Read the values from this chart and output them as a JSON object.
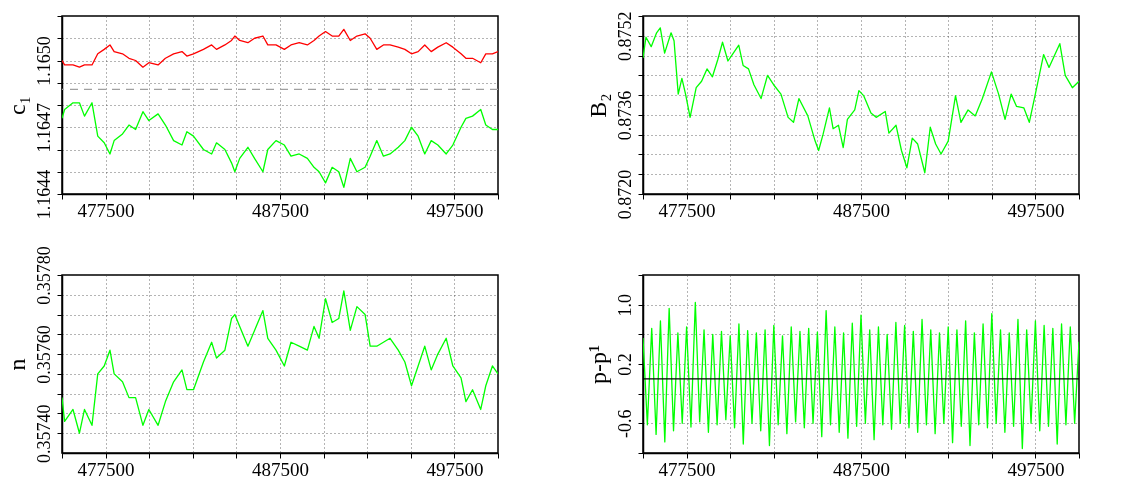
{
  "chart_data": [
    {
      "type": "line",
      "ylabel": "c₁",
      "grid": true,
      "xlim": [
        475000,
        500000
      ],
      "ylim": [
        1.1644,
        1.1652
      ],
      "xticks": [
        {
          "value": 475000,
          "label": null
        },
        477500,
        {
          "value": 480000,
          "label": null
        },
        {
          "value": 482500,
          "label": null
        },
        {
          "value": 485000,
          "label": null
        },
        487500,
        {
          "value": 490000,
          "label": null
        },
        {
          "value": 492500,
          "label": null
        },
        {
          "value": 495000,
          "label": null
        },
        497500,
        {
          "value": 500000,
          "label": null
        }
      ],
      "yticks": [
        {
          "value": 1.1644,
          "label": "1.1644"
        },
        {
          "value": 1.1645,
          "label": null
        },
        {
          "value": 1.1646,
          "label": null
        },
        {
          "value": 1.1647,
          "label": "1.1647"
        },
        {
          "value": 1.1648,
          "label": null
        },
        {
          "value": 1.1649,
          "label": null
        },
        {
          "value": 1.165,
          "label": "1.1650"
        },
        {
          "value": 1.1651,
          "label": null
        },
        {
          "value": 1.1652,
          "label": null
        }
      ],
      "x": [
        475000,
        475150,
        475630,
        476000,
        476290,
        476720,
        477050,
        477420,
        477750,
        477990,
        478470,
        478840,
        479220,
        479640,
        479980,
        480510,
        480930,
        481400,
        481880,
        482160,
        482540,
        483110,
        483580,
        483860,
        484340,
        484720,
        484910,
        485190,
        485660,
        486040,
        486520,
        486800,
        487270,
        487750,
        488130,
        488600,
        489070,
        489450,
        489740,
        490110,
        490490,
        490870,
        491160,
        491530,
        491910,
        492380,
        492670,
        493050,
        493430,
        493810,
        494280,
        494660,
        495040,
        495420,
        495800,
        496170,
        496550,
        497030,
        497410,
        497880,
        498160,
        498540,
        499010,
        499300,
        499680,
        500000
      ],
      "series": [
        {
          "color": "#ff0000",
          "values": [
            1.165,
            1.16498,
            1.16498,
            1.16497,
            1.16498,
            1.16498,
            1.16503,
            1.16505,
            1.16507,
            1.16504,
            1.16503,
            1.16501,
            1.165,
            1.16497,
            1.16499,
            1.16498,
            1.16501,
            1.16503,
            1.16504,
            1.16502,
            1.16503,
            1.16505,
            1.16507,
            1.16505,
            1.16507,
            1.16509,
            1.16511,
            1.16509,
            1.16508,
            1.1651,
            1.16511,
            1.16507,
            1.16507,
            1.16505,
            1.16507,
            1.16508,
            1.16507,
            1.16509,
            1.16511,
            1.16513,
            1.16511,
            1.16511,
            1.16514,
            1.16509,
            1.16511,
            1.16512,
            1.1651,
            1.16505,
            1.16507,
            1.16507,
            1.16506,
            1.16505,
            1.16503,
            1.16504,
            1.16507,
            1.16504,
            1.16506,
            1.16508,
            1.16506,
            1.16503,
            1.16501,
            1.16501,
            1.16499,
            1.16503,
            1.16503,
            1.16504
          ]
        },
        {
          "color": "#00ff00",
          "values": [
            1.16474,
            1.16478,
            1.16481,
            1.16481,
            1.16475,
            1.16481,
            1.16466,
            1.16463,
            1.16458,
            1.16464,
            1.16467,
            1.16471,
            1.16469,
            1.16477,
            1.16473,
            1.16476,
            1.16471,
            1.16464,
            1.16462,
            1.16468,
            1.16466,
            1.1646,
            1.16458,
            1.16463,
            1.1646,
            1.16454,
            1.1645,
            1.16456,
            1.16461,
            1.16456,
            1.1645,
            1.1646,
            1.16464,
            1.16462,
            1.16457,
            1.16458,
            1.16456,
            1.16452,
            1.1645,
            1.16445,
            1.16452,
            1.1645,
            1.16443,
            1.16456,
            1.1645,
            1.16452,
            1.16457,
            1.16464,
            1.16457,
            1.16458,
            1.16461,
            1.16464,
            1.1647,
            1.16466,
            1.16458,
            1.16464,
            1.16462,
            1.16458,
            1.16462,
            1.1647,
            1.16474,
            1.16475,
            1.16478,
            1.16471,
            1.16469,
            1.16469
          ]
        }
      ],
      "ref_lines": [
        {
          "axis": "y",
          "value": 1.16487,
          "color": "#a0a0a0",
          "line_style": "dashed"
        }
      ]
    },
    {
      "type": "line",
      "ylabel": "B₂",
      "grid": true,
      "xlim": [
        475000,
        500000
      ],
      "ylim": [
        0.872,
        0.8756
      ],
      "xticks": [
        {
          "value": 475000,
          "label": null
        },
        477500,
        {
          "value": 480000,
          "label": null
        },
        {
          "value": 482500,
          "label": null
        },
        {
          "value": 485000,
          "label": null
        },
        487500,
        {
          "value": 490000,
          "label": null
        },
        {
          "value": 492500,
          "label": null
        },
        {
          "value": 495000,
          "label": null
        },
        497500,
        {
          "value": 500000,
          "label": null
        }
      ],
      "yticks": [
        {
          "value": 0.872,
          "label": "0.8720"
        },
        {
          "value": 0.8724,
          "label": null
        },
        {
          "value": 0.8728,
          "label": null
        },
        {
          "value": 0.8732,
          "label": null
        },
        {
          "value": 0.8736,
          "label": "0.8736"
        },
        {
          "value": 0.874,
          "label": null
        },
        {
          "value": 0.8744,
          "label": null
        },
        {
          "value": 0.8748,
          "label": null
        },
        {
          "value": 0.8752,
          "label": "0.8752"
        },
        {
          "value": 0.8756,
          "label": null
        }
      ],
      "x": [
        475000,
        475170,
        475470,
        475780,
        475990,
        476240,
        476610,
        476780,
        477020,
        477230,
        477440,
        477700,
        478050,
        478360,
        478670,
        478980,
        479290,
        479560,
        479870,
        480120,
        480490,
        480740,
        481050,
        481360,
        481770,
        482140,
        482490,
        482910,
        483320,
        483630,
        483940,
        484450,
        484870,
        485070,
        485320,
        485690,
        485900,
        486210,
        486480,
        486720,
        487140,
        487380,
        487650,
        488070,
        488370,
        488890,
        489100,
        489510,
        489820,
        490130,
        490440,
        490750,
        491160,
        491470,
        491780,
        492090,
        492500,
        492920,
        493230,
        493640,
        494050,
        494460,
        494980,
        495390,
        495760,
        496110,
        496420,
        496840,
        497150,
        497460,
        497970,
        498280,
        498900,
        499210,
        499620,
        500000
      ],
      "series": [
        {
          "color": "#00ff00",
          "values": [
            0.87475,
            0.87517,
            0.87498,
            0.87526,
            0.87536,
            0.87485,
            0.87526,
            0.8751,
            0.87402,
            0.87434,
            0.87402,
            0.87355,
            0.87415,
            0.87428,
            0.87453,
            0.87437,
            0.87472,
            0.87507,
            0.87469,
            0.87482,
            0.87501,
            0.8746,
            0.87453,
            0.87421,
            0.87393,
            0.8744,
            0.87421,
            0.87402,
            0.87355,
            0.87345,
            0.87393,
            0.87358,
            0.87307,
            0.87288,
            0.8732,
            0.87374,
            0.87332,
            0.87339,
            0.87294,
            0.87351,
            0.8737,
            0.87409,
            0.87399,
            0.87364,
            0.87355,
            0.87367,
            0.87323,
            0.87339,
            0.87288,
            0.87253,
            0.87313,
            0.87301,
            0.87243,
            0.87335,
            0.87301,
            0.87281,
            0.87307,
            0.87399,
            0.87345,
            0.8737,
            0.87358,
            0.87393,
            0.87447,
            0.87402,
            0.87351,
            0.87402,
            0.87377,
            0.87374,
            0.87345,
            0.87396,
            0.87482,
            0.87456,
            0.87504,
            0.8744,
            0.87415,
            0.87428
          ]
        }
      ]
    },
    {
      "type": "line",
      "ylabel": "n",
      "grid": true,
      "xlim": [
        475000,
        500000
      ],
      "ylim": [
        0.35735,
        0.3578
      ],
      "xticks": [
        {
          "value": 475000,
          "label": null
        },
        477500,
        {
          "value": 480000,
          "label": null
        },
        {
          "value": 482500,
          "label": null
        },
        {
          "value": 485000,
          "label": null
        },
        487500,
        {
          "value": 490000,
          "label": null
        },
        {
          "value": 492500,
          "label": null
        },
        {
          "value": 495000,
          "label": null
        },
        497500,
        {
          "value": 500000,
          "label": null
        }
      ],
      "yticks": [
        {
          "value": 0.3574,
          "label": "0.35740"
        },
        {
          "value": 0.35745,
          "label": null
        },
        {
          "value": 0.3575,
          "label": null
        },
        {
          "value": 0.35755,
          "label": null
        },
        {
          "value": 0.3576,
          "label": "0.35760"
        },
        {
          "value": 0.35765,
          "label": null
        },
        {
          "value": 0.3577,
          "label": null
        },
        {
          "value": 0.35775,
          "label": null
        },
        {
          "value": 0.3578,
          "label": "0.35780"
        }
      ],
      "x": [
        475000,
        475150,
        475630,
        476000,
        476290,
        476720,
        477050,
        477420,
        477750,
        477990,
        478470,
        478840,
        479220,
        479640,
        479980,
        480510,
        480930,
        481400,
        481880,
        482160,
        482540,
        483110,
        483580,
        483860,
        484340,
        484720,
        484910,
        485190,
        485660,
        486040,
        486520,
        486800,
        487270,
        487750,
        488130,
        488600,
        489070,
        489450,
        489740,
        490110,
        490490,
        490870,
        491160,
        491530,
        491910,
        492380,
        492670,
        493050,
        493430,
        493810,
        494280,
        494660,
        495040,
        495420,
        495800,
        496170,
        496550,
        497030,
        497410,
        497880,
        498160,
        498540,
        499010,
        499300,
        499680,
        500000
      ],
      "series": [
        {
          "color": "#00ff00",
          "values": [
            0.35749,
            0.35743,
            0.35746,
            0.3574,
            0.35746,
            0.35742,
            0.35755,
            0.35757,
            0.35761,
            0.35755,
            0.35753,
            0.35749,
            0.35749,
            0.35742,
            0.35746,
            0.35742,
            0.35748,
            0.35753,
            0.35756,
            0.35751,
            0.35751,
            0.35758,
            0.35763,
            0.35759,
            0.35761,
            0.35769,
            0.3577,
            0.35767,
            0.35762,
            0.35766,
            0.35771,
            0.35764,
            0.35761,
            0.35757,
            0.35763,
            0.35762,
            0.35761,
            0.35767,
            0.35764,
            0.35774,
            0.35768,
            0.35769,
            0.35776,
            0.35766,
            0.35772,
            0.3577,
            0.35762,
            0.35762,
            0.35763,
            0.35764,
            0.35761,
            0.35758,
            0.35752,
            0.35757,
            0.35762,
            0.35756,
            0.3576,
            0.35764,
            0.35757,
            0.35754,
            0.35748,
            0.35751,
            0.35746,
            0.35752,
            0.35757,
            0.35755
          ]
        }
      ]
    },
    {
      "type": "line",
      "ylabel": "p-p¹",
      "grid": true,
      "xlim": [
        475000,
        500000
      ],
      "ylim": [
        -1.0,
        1.4
      ],
      "xticks": [
        {
          "value": 475000,
          "label": null
        },
        477500,
        {
          "value": 480000,
          "label": null
        },
        {
          "value": 482500,
          "label": null
        },
        {
          "value": 485000,
          "label": null
        },
        487500,
        {
          "value": 490000,
          "label": null
        },
        {
          "value": 492500,
          "label": null
        },
        {
          "value": 495000,
          "label": null
        },
        497500,
        {
          "value": 500000,
          "label": null
        }
      ],
      "yticks": [
        {
          "value": -1.0,
          "label": null
        },
        -0.6,
        {
          "value": -0.2,
          "label": null
        },
        0.2,
        {
          "value": 0.6,
          "label": null
        },
        {
          "value": 1.0,
          "label": "1.0"
        },
        {
          "value": 1.4,
          "label": null
        }
      ],
      "x": [
        475000,
        475250,
        475500,
        475750,
        476000,
        476250,
        476500,
        476750,
        477000,
        477250,
        477500,
        477750,
        478000,
        478250,
        478500,
        478750,
        479000,
        479250,
        479500,
        479750,
        480000,
        480250,
        480500,
        480750,
        481000,
        481250,
        481500,
        481750,
        482000,
        482250,
        482500,
        482750,
        483000,
        483250,
        483500,
        483750,
        484000,
        484250,
        484500,
        484750,
        485000,
        485250,
        485500,
        485750,
        486000,
        486250,
        486500,
        486750,
        487000,
        487250,
        487500,
        487750,
        488000,
        488250,
        488500,
        488750,
        489000,
        489250,
        489500,
        489750,
        490000,
        490250,
        490500,
        490750,
        491000,
        491250,
        491500,
        491750,
        492000,
        492250,
        492500,
        492750,
        493000,
        493250,
        493500,
        493750,
        494000,
        494250,
        494500,
        494750,
        495000,
        495250,
        495500,
        495750,
        496000,
        496250,
        496500,
        496750,
        497000,
        497250,
        497500,
        497750,
        498000,
        498250,
        498500,
        498750,
        499000,
        499250,
        499500,
        499750,
        500000
      ],
      "series": [
        {
          "color": "#00ff00",
          "values": [
            0.55,
            -0.62,
            0.68,
            -0.75,
            0.78,
            -0.85,
            0.95,
            -0.7,
            0.62,
            -0.6,
            0.7,
            -0.65,
            1.03,
            -0.58,
            0.66,
            -0.72,
            0.6,
            -0.62,
            0.64,
            -0.55,
            0.58,
            -0.66,
            0.74,
            -0.88,
            0.65,
            -0.6,
            0.62,
            -0.7,
            0.66,
            -0.9,
            0.72,
            -0.62,
            0.58,
            -0.74,
            0.7,
            -0.58,
            0.64,
            -0.66,
            0.68,
            -0.6,
            0.63,
            -0.78,
            0.92,
            -0.62,
            0.7,
            -0.72,
            0.62,
            -0.8,
            0.75,
            -0.64,
            0.86,
            -0.6,
            0.66,
            -0.82,
            0.7,
            -0.62,
            0.6,
            -0.68,
            0.76,
            -0.6,
            0.72,
            -0.66,
            0.64,
            -0.72,
            0.8,
            -0.62,
            0.66,
            -0.74,
            0.62,
            -0.6,
            0.7,
            -0.86,
            0.66,
            -0.64,
            0.78,
            -0.9,
            0.62,
            -0.62,
            0.74,
            -0.66,
            0.88,
            -0.6,
            0.66,
            -0.72,
            0.62,
            -0.64,
            0.8,
            -0.94,
            0.66,
            -0.6,
            0.78,
            -0.7,
            0.72,
            -0.64,
            0.68,
            -0.88,
            0.74,
            -0.62,
            0.7,
            -0.6,
            0.5
          ]
        }
      ],
      "ref_lines": [
        {
          "axis": "y",
          "value": 0.0,
          "color": "#000000",
          "line_style": "solid"
        }
      ]
    }
  ]
}
